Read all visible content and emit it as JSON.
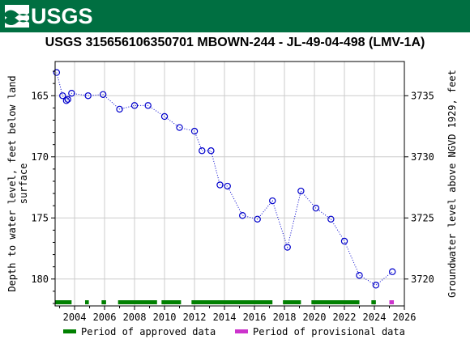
{
  "header": {
    "logo_text": "USGS",
    "logo_icon": "usgs-wave-icon",
    "brand_color": "#006f41"
  },
  "chart_data": {
    "type": "scatter",
    "title": "USGS 315656106350701 MBOWN-244 - JL-49-04-498 (LMV-1A)",
    "ylabel": "Depth to water level, feet below land surface",
    "ylabel_right": "Groundwater level above NGVD 1929, feet",
    "x_ticks": [
      "2004",
      "2006",
      "2008",
      "2010",
      "2012",
      "2014",
      "2016",
      "2018",
      "2020",
      "2022",
      "2024",
      "2026"
    ],
    "y_ticks": [
      "165",
      "170",
      "175",
      "180"
    ],
    "y_ticks_right": [
      "3735",
      "3730",
      "3725",
      "3720"
    ],
    "xlim": [
      2002.7,
      2026
    ],
    "ylim": [
      162.2,
      182.2
    ],
    "y_inverted": true,
    "grid": true,
    "marker_color": "#0000cc",
    "points": [
      {
        "x": 2002.8,
        "y": 163.1
      },
      {
        "x": 2003.2,
        "y": 165.0
      },
      {
        "x": 2003.45,
        "y": 165.4
      },
      {
        "x": 2003.55,
        "y": 165.3
      },
      {
        "x": 2003.8,
        "y": 164.8
      },
      {
        "x": 2004.9,
        "y": 165.0
      },
      {
        "x": 2005.9,
        "y": 164.9
      },
      {
        "x": 2007.0,
        "y": 166.1
      },
      {
        "x": 2008.0,
        "y": 165.8
      },
      {
        "x": 2008.9,
        "y": 165.8
      },
      {
        "x": 2010.0,
        "y": 166.7
      },
      {
        "x": 2011.0,
        "y": 167.6
      },
      {
        "x": 2012.0,
        "y": 167.9
      },
      {
        "x": 2012.5,
        "y": 169.5
      },
      {
        "x": 2013.1,
        "y": 169.5
      },
      {
        "x": 2013.7,
        "y": 172.3
      },
      {
        "x": 2014.2,
        "y": 172.4
      },
      {
        "x": 2015.2,
        "y": 174.8
      },
      {
        "x": 2016.2,
        "y": 175.1
      },
      {
        "x": 2017.2,
        "y": 173.6
      },
      {
        "x": 2018.2,
        "y": 177.4
      },
      {
        "x": 2019.1,
        "y": 172.8
      },
      {
        "x": 2020.1,
        "y": 174.2
      },
      {
        "x": 2021.1,
        "y": 175.1
      },
      {
        "x": 2022.0,
        "y": 176.9
      },
      {
        "x": 2023.0,
        "y": 179.7
      },
      {
        "x": 2024.1,
        "y": 180.5
      },
      {
        "x": 2025.2,
        "y": 179.4
      }
    ],
    "approved_periods": [
      [
        2002.7,
        2003.8
      ],
      [
        2004.7,
        2004.95
      ],
      [
        2005.8,
        2006.1
      ],
      [
        2006.9,
        2009.5
      ],
      [
        2009.8,
        2011.1
      ],
      [
        2011.8,
        2017.2
      ],
      [
        2017.9,
        2019.1
      ],
      [
        2019.8,
        2023.0
      ],
      [
        2023.8,
        2024.1
      ]
    ],
    "provisional_periods": [
      [
        2025.0,
        2025.3
      ]
    ],
    "legend": {
      "approved_label": "Period of approved data",
      "approved_color": "#008000",
      "provisional_label": "Period of provisional data",
      "provisional_color": "#cc33cc",
      "placement": "bottom"
    }
  }
}
